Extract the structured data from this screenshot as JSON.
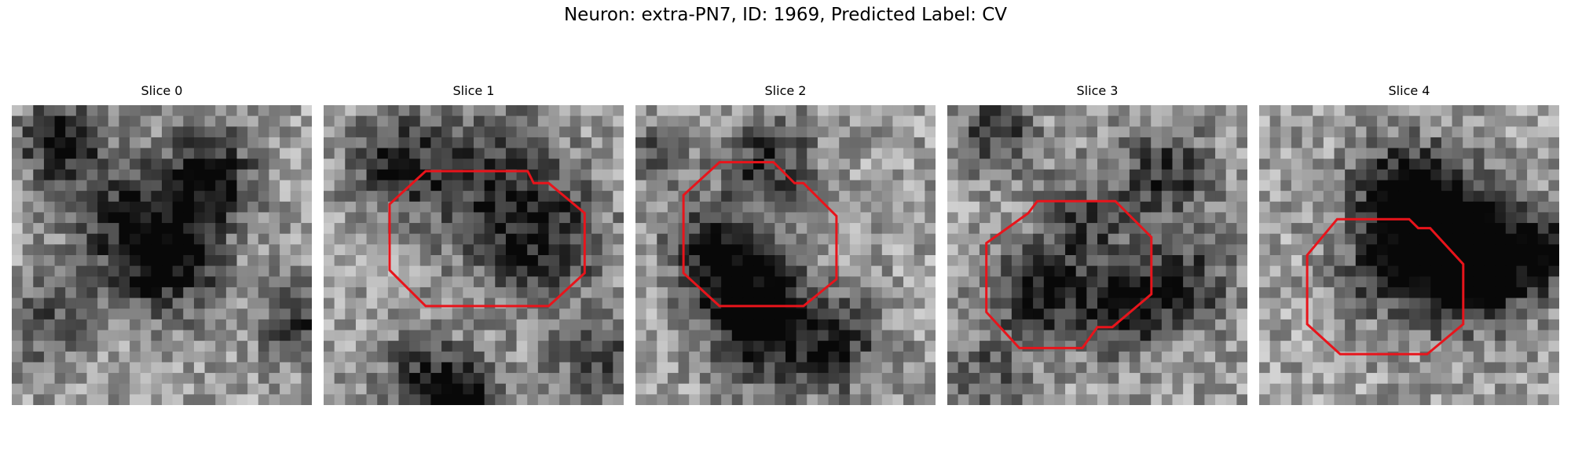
{
  "figure": {
    "title": "Neuron: extra-PN7, ID: 1969, Predicted Label: CV"
  },
  "panels": [
    {
      "title": "Slice 0",
      "contour": false
    },
    {
      "title": "Slice 1",
      "contour": true
    },
    {
      "title": "Slice 2",
      "contour": true
    },
    {
      "title": "Slice 3",
      "contour": true
    },
    {
      "title": "Slice 4",
      "contour": true
    }
  ],
  "colors": {
    "contour": "#e8141b",
    "background": "#ffffff"
  }
}
